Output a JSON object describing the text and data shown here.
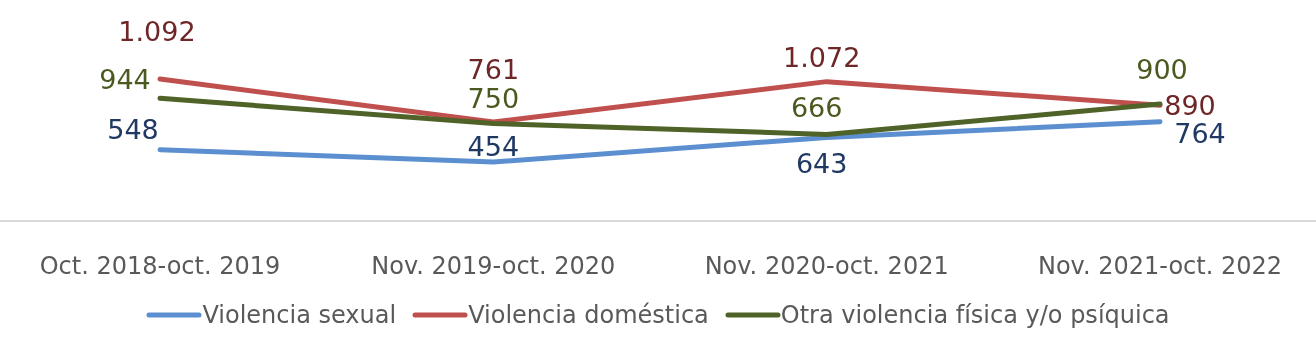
{
  "chart_data": {
    "type": "line",
    "categories": [
      "Oct. 2018-oct. 2019",
      "Nov. 2019-oct. 2020",
      "Nov. 2020-oct. 2021",
      "Nov. 2021-oct. 2022"
    ],
    "series": [
      {
        "name": "Violencia sexual",
        "color": "#5b8fd0",
        "values": [
          548,
          454,
          643,
          764
        ],
        "value_labels": [
          "548",
          "454",
          "643",
          "764"
        ]
      },
      {
        "name": "Violencia doméstica",
        "color": "#c0504d",
        "values": [
          1092,
          761,
          1072,
          890
        ],
        "value_labels": [
          "1.092",
          "761",
          "1.072",
          "890"
        ]
      },
      {
        "name": "Otra violencia física y/o psíquica",
        "color": "#4f6228",
        "values": [
          944,
          750,
          666,
          900
        ],
        "value_labels": [
          "944",
          "750",
          "666",
          "900"
        ]
      }
    ],
    "ylim": [
      0,
      1700
    ],
    "tick_labels": "x",
    "legend": "bottom",
    "marker": "none",
    "line_style": "solid"
  }
}
